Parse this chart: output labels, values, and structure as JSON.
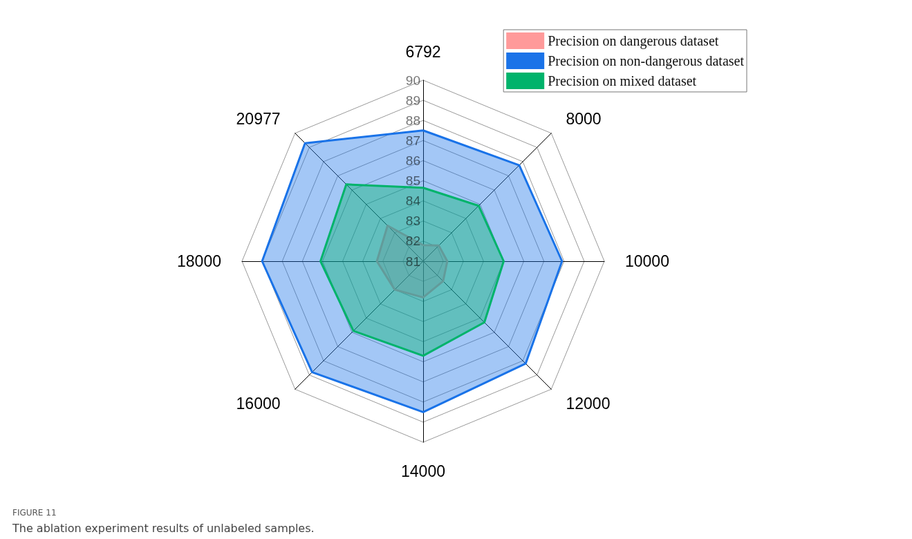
{
  "chart_data": {
    "type": "radar",
    "categories": [
      "6792",
      "8000",
      "10000",
      "12000",
      "14000",
      "16000",
      "18000",
      "20977"
    ],
    "ylim": [
      81,
      90
    ],
    "yticks": [
      81,
      82,
      83,
      84,
      85,
      86,
      87,
      88,
      89,
      90
    ],
    "grid": true,
    "legend": "top right",
    "series": [
      {
        "name": "Precision on dangerous dataset",
        "color": "#ff9a9a",
        "values": [
          81.8,
          82.1,
          82.2,
          82.4,
          82.8,
          83.0,
          83.3,
          83.5
        ]
      },
      {
        "name": "Precision on non-dangerous dataset",
        "color": "#1a73e8",
        "values": [
          87.5,
          87.75,
          87.9,
          88.2,
          88.5,
          88.8,
          89.0,
          89.3
        ]
      },
      {
        "name": "Precision on mixed dataset",
        "color": "#00b36b",
        "values": [
          84.65,
          84.9,
          85.0,
          85.3,
          85.7,
          85.9,
          86.1,
          86.4
        ]
      }
    ],
    "annotations": [
      "FIGURE 11",
      "The ablation experiment results of unlabeled samples."
    ]
  }
}
